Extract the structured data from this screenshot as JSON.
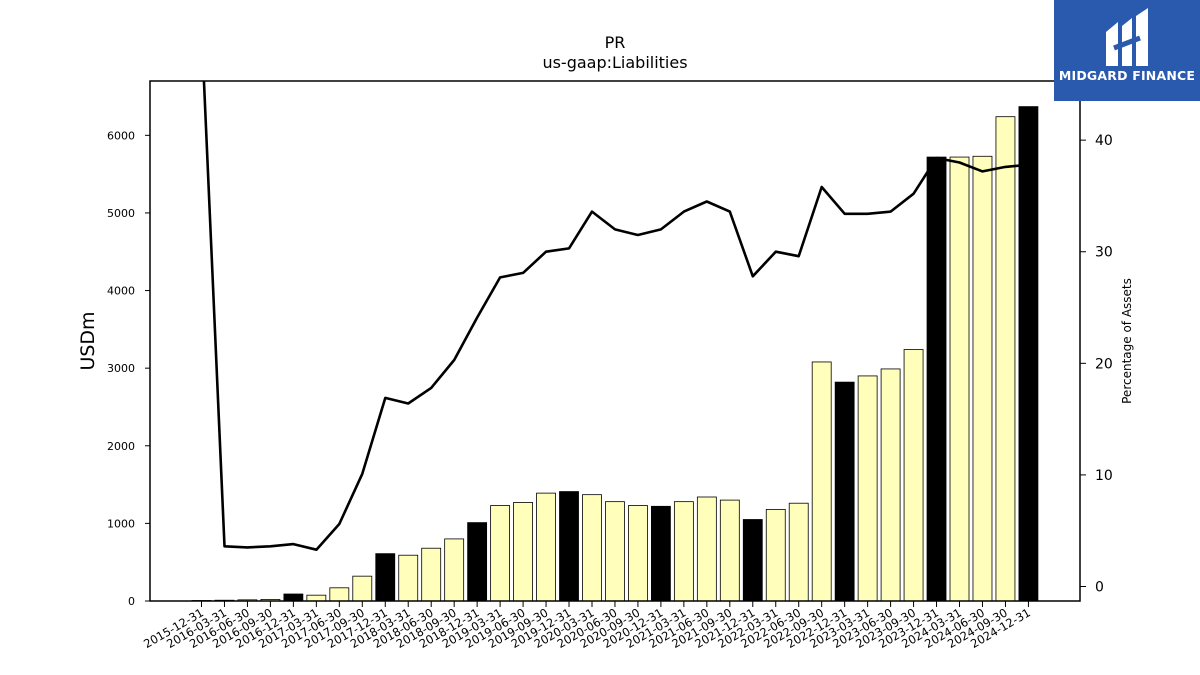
{
  "chart_data": {
    "type": "bar",
    "title": "PR",
    "subtitle": "us-gaap:Liabilities",
    "ylabel": "USDm",
    "y2label": "Percentage of Assets",
    "ylim": [
      0,
      6700
    ],
    "y2lim": [
      -1.3,
      45.3
    ],
    "yticks": [
      0,
      1000,
      2000,
      3000,
      4000,
      5000,
      6000
    ],
    "y2ticks": [
      0,
      10,
      20,
      30,
      40
    ],
    "categories": [
      "2015-12-31",
      "2016-03-31",
      "2016-06-30",
      "2016-09-30",
      "2016-12-31",
      "2017-03-31",
      "2017-06-30",
      "2017-09-30",
      "2017-12-31",
      "2018-03-31",
      "2018-06-30",
      "2018-09-30",
      "2018-12-31",
      "2019-03-31",
      "2019-06-30",
      "2019-09-30",
      "2019-12-31",
      "2020-03-31",
      "2020-06-30",
      "2020-09-30",
      "2020-12-31",
      "2021-03-31",
      "2021-06-30",
      "2021-09-30",
      "2021-12-31",
      "2022-03-31",
      "2022-06-30",
      "2022-09-30",
      "2022-12-31",
      "2023-03-31",
      "2023-06-30",
      "2023-09-30",
      "2023-12-31",
      "2024-03-31",
      "2024-06-30",
      "2024-09-30",
      "2024-12-31"
    ],
    "series": [
      {
        "kind": "bar",
        "values": [
          0,
          10,
          15,
          20,
          90,
          75,
          170,
          320,
          610,
          590,
          680,
          800,
          1010,
          1230,
          1270,
          1390,
          1410,
          1370,
          1280,
          1230,
          1220,
          1280,
          1340,
          1300,
          1050,
          1180,
          1260,
          3080,
          2820,
          2900,
          2990,
          3240,
          5720,
          5720,
          5730,
          6240,
          6370
        ],
        "highlight": [
          false,
          false,
          false,
          false,
          true,
          false,
          false,
          false,
          true,
          false,
          false,
          false,
          true,
          false,
          false,
          false,
          true,
          false,
          false,
          false,
          true,
          false,
          false,
          false,
          true,
          false,
          false,
          false,
          true,
          false,
          false,
          false,
          true,
          false,
          false,
          false,
          true
        ],
        "fill_color": "#ffffbb",
        "highlight_color": "#000000"
      },
      {
        "kind": "line",
        "axis": "right",
        "values": [
          null,
          3.6,
          3.5,
          3.6,
          3.8,
          3.3,
          5.6,
          10.1,
          16.9,
          16.4,
          17.8,
          20.3,
          24.1,
          27.7,
          28.1,
          30.0,
          30.3,
          33.6,
          32.0,
          31.5,
          32.0,
          33.6,
          34.5,
          33.6,
          27.8,
          30.0,
          29.6,
          35.8,
          33.4,
          33.4,
          33.6,
          35.2,
          38.4,
          38.0,
          37.2,
          37.6,
          37.8
        ],
        "color": "#000000",
        "note": "first point rises above the plot top"
      }
    ]
  },
  "logo": {
    "text": "MIDGARD FINANCE",
    "icon": "midgard-logo-icon",
    "bg": "#2a5aad"
  }
}
